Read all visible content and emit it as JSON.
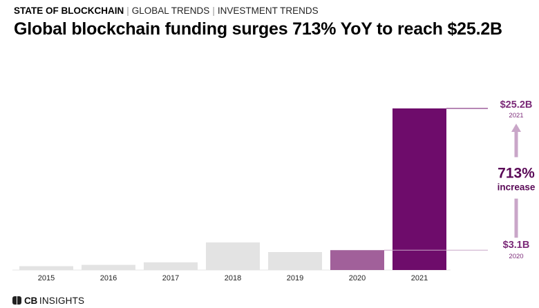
{
  "header": {
    "breadcrumb": [
      "STATE OF BLOCKCHAIN",
      "GLOBAL TRENDS",
      "INVESTMENT TRENDS"
    ],
    "title": "Global blockchain funding surges 713% YoY to reach $25.2B"
  },
  "chart_data": {
    "type": "bar",
    "title": "Global blockchain funding surges 713% YoY to reach $25.2B",
    "units": "$B",
    "categories": [
      "2015",
      "2016",
      "2017",
      "2018",
      "2019",
      "2020",
      "2021"
    ],
    "values": [
      0.6,
      0.8,
      1.2,
      4.3,
      2.8,
      3.1,
      25.2
    ],
    "ylim": [
      0,
      28
    ],
    "xlabel": "",
    "ylabel": "",
    "colors": [
      "#e3e3e3",
      "#e3e3e3",
      "#e3e3e3",
      "#e3e3e3",
      "#e3e3e3",
      "#a1609a",
      "#6e0c6b"
    ],
    "annotations": {
      "top_value": "$25.2B",
      "top_year": "2021",
      "bottom_value": "$3.1B",
      "bottom_year": "2020",
      "change": "713%",
      "change_label": "increase",
      "line_color": "#6e0c6b",
      "arrow_color": "#c9a6c8",
      "label_color": "#7b2a78"
    }
  },
  "footer": {
    "logo_cb": "CB",
    "logo_insights": "INSIGHTS"
  }
}
